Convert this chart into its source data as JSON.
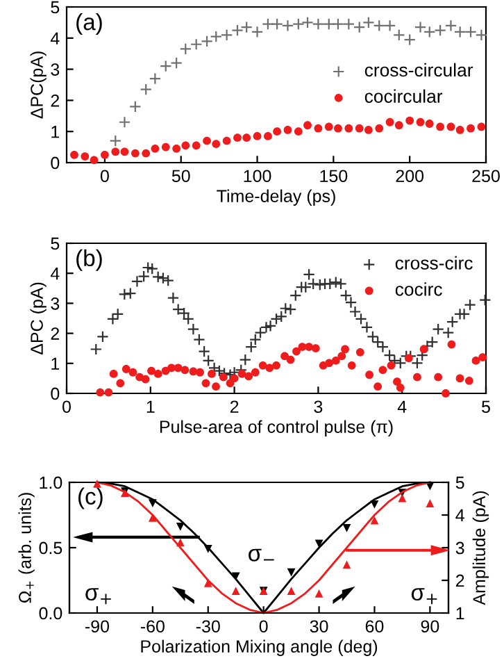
{
  "chart_data": [
    {
      "type": "scatter",
      "xlabel": "Time-delay (ps)",
      "ylabel": "ΔPC(pA)",
      "xlim": [
        -25,
        250
      ],
      "xticks": [
        0,
        50,
        100,
        150,
        200,
        250
      ],
      "ylim": [
        0,
        5
      ],
      "yticks": [
        0,
        1,
        2,
        3,
        4,
        5
      ],
      "legend": "right",
      "grid": false,
      "annotations": [
        "(a)"
      ],
      "series": [
        {
          "name": "cross-circular",
          "color": "#707070",
          "marker": "cross",
          "x": [
            7,
            13,
            20,
            27,
            33,
            40,
            47,
            53,
            60,
            67,
            73,
            80,
            87,
            93,
            100,
            107,
            113,
            120,
            127,
            133,
            140,
            147,
            153,
            160,
            167,
            173,
            180,
            187,
            193,
            200,
            207,
            213,
            220,
            227,
            233,
            240,
            247
          ],
          "values": [
            0.7,
            1.3,
            1.8,
            2.35,
            2.7,
            3.1,
            3.2,
            3.65,
            3.8,
            3.9,
            4.05,
            4.1,
            4.25,
            4.35,
            4.2,
            4.45,
            4.45,
            4.4,
            4.45,
            4.5,
            4.45,
            4.45,
            4.45,
            4.45,
            4.35,
            4.5,
            4.4,
            4.4,
            4.1,
            3.95,
            4.35,
            4.2,
            4.25,
            4.4,
            4.2,
            4.2,
            4.1
          ]
        },
        {
          "name": "cocircular",
          "color": "#ee1c1c",
          "marker": "circle",
          "x": [
            -20,
            -13,
            -7,
            0,
            7,
            13,
            20,
            27,
            33,
            40,
            47,
            53,
            60,
            67,
            73,
            80,
            87,
            93,
            100,
            107,
            113,
            120,
            127,
            133,
            140,
            147,
            153,
            160,
            167,
            173,
            180,
            187,
            193,
            200,
            207,
            213,
            220,
            227,
            233,
            240,
            247
          ],
          "values": [
            0.25,
            0.2,
            0.08,
            0.25,
            0.35,
            0.35,
            0.3,
            0.3,
            0.45,
            0.5,
            0.45,
            0.55,
            0.55,
            0.7,
            0.6,
            0.7,
            0.8,
            0.8,
            0.85,
            0.85,
            1.0,
            1.05,
            1.0,
            1.2,
            1.1,
            1.15,
            1.1,
            1.1,
            1.1,
            1.05,
            1.1,
            1.3,
            1.2,
            1.35,
            1.3,
            1.25,
            1.15,
            1.15,
            1.05,
            1.1,
            1.15
          ]
        }
      ]
    },
    {
      "type": "scatter",
      "xlabel": "Pulse-area of control pulse (π)",
      "ylabel": "ΔPC (pA)",
      "xlim": [
        0,
        5
      ],
      "xticks": [
        0,
        1,
        2,
        3,
        4,
        5
      ],
      "ylim": [
        0,
        5
      ],
      "yticks": [
        0,
        1,
        2,
        3,
        4,
        5
      ],
      "legend": "top right",
      "grid": false,
      "annotations": [
        "(b)"
      ],
      "series": [
        {
          "name": "cross-circ",
          "color": "#303030",
          "marker": "cross",
          "x": [
            0.35,
            0.43,
            0.55,
            0.61,
            0.69,
            0.76,
            0.84,
            0.92,
            0.97,
            1.02,
            1.09,
            1.15,
            1.21,
            1.27,
            1.33,
            1.4,
            1.45,
            1.51,
            1.58,
            1.64,
            1.69,
            1.76,
            1.82,
            1.88,
            1.95,
            2.0,
            2.08,
            2.13,
            2.2,
            2.25,
            2.31,
            2.38,
            2.43,
            2.5,
            2.56,
            2.61,
            2.67,
            2.73,
            2.8,
            2.85,
            2.89,
            2.94,
            3.02,
            3.08,
            3.14,
            3.21,
            3.27,
            3.33,
            3.39,
            3.44,
            3.51,
            3.58,
            3.65,
            3.71,
            3.77,
            3.85,
            3.91,
            3.98,
            4.05,
            4.1,
            4.18,
            4.24,
            4.3,
            4.36,
            4.43,
            4.55,
            4.6,
            4.69,
            4.74,
            4.81,
            4.99
          ],
          "values": [
            1.47,
            1.89,
            2.48,
            2.64,
            3.3,
            3.33,
            3.73,
            3.9,
            4.19,
            4.15,
            3.88,
            3.84,
            3.76,
            3.18,
            2.8,
            2.67,
            2.48,
            2.14,
            1.79,
            1.4,
            1.09,
            0.85,
            0.75,
            0.67,
            0.62,
            0.7,
            0.78,
            1.12,
            1.55,
            1.79,
            2.02,
            2.2,
            2.25,
            2.48,
            2.56,
            2.83,
            2.8,
            3.26,
            3.54,
            3.54,
            3.96,
            3.65,
            3.62,
            3.65,
            3.65,
            3.7,
            3.65,
            3.26,
            3.03,
            2.72,
            2.48,
            2.2,
            1.89,
            1.71,
            1.55,
            1.27,
            1.09,
            1.01,
            1.24,
            1.24,
            1.01,
            1.27,
            1.58,
            1.71,
            2.14,
            2.02,
            2.38,
            2.64,
            2.64,
            2.95,
            3.11
          ]
        },
        {
          "name": "cocirc",
          "color": "#ee1c1c",
          "marker": "circle",
          "x": [
            0.4,
            0.5,
            0.56,
            0.64,
            0.71,
            0.79,
            0.87,
            0.94,
            1.01,
            1.09,
            1.18,
            1.25,
            1.33,
            1.41,
            1.51,
            1.59,
            1.66,
            1.73,
            1.78,
            1.87,
            1.95,
            2.0,
            2.09,
            2.17,
            2.25,
            2.34,
            2.42,
            2.5,
            2.6,
            2.67,
            2.74,
            2.81,
            2.89,
            2.97,
            3.06,
            3.13,
            3.21,
            3.28,
            3.32,
            3.4,
            3.5,
            3.61,
            3.71,
            3.77,
            3.87,
            3.94,
            3.98,
            4.08,
            4.18,
            4.26,
            4.43,
            4.52,
            4.59,
            4.69,
            4.8,
            4.88,
            4.96
          ],
          "values": [
            0.03,
            0.03,
            0.65,
            0.34,
            0.81,
            0.7,
            0.54,
            0.47,
            0.75,
            0.65,
            0.75,
            0.85,
            0.85,
            0.78,
            0.73,
            0.7,
            0.34,
            0.65,
            0.23,
            0.54,
            0.34,
            0.5,
            0.65,
            0.57,
            0.7,
            0.93,
            0.85,
            0.93,
            1.24,
            1.12,
            1.4,
            1.55,
            1.55,
            1.5,
            0.93,
            1.01,
            1.09,
            1.24,
            1.47,
            0.93,
            1.37,
            0.62,
            0.23,
            0.78,
            0.93,
            0.39,
            0.19,
            1.17,
            0.54,
            1.47,
            0.54,
            0.0,
            1.63,
            0.5,
            0.42,
            1.09,
            1.2
          ]
        }
      ]
    },
    {
      "type": "scatter",
      "xlabel": "Polarization Mixing angle (deg)",
      "ylabel": "Ω$_{+}$ (arb. units)",
      "y2label": "Amplitude (pA)",
      "xlim": [
        -105,
        100
      ],
      "xticks": [
        -90,
        -60,
        -30,
        0,
        30,
        60,
        90
      ],
      "ylim": [
        0,
        1
      ],
      "yticks": [
        {
          "value": 0,
          "label": "0.0"
        },
        0.5,
        {
          "value": 1,
          "label": "1.0"
        }
      ],
      "y2lim": [
        1,
        5
      ],
      "y2ticks": [
        1,
        2,
        3,
        4,
        5
      ],
      "legend": false,
      "grid": false,
      "annotations": [
        "(c)",
        "σ$_{−}$",
        "σ$_{+}$",
        "σ$_{+}$"
      ],
      "series": [
        {
          "type": "line",
          "color": "#000000",
          "marker": "none",
          "x": [
            -90,
            -82.5,
            -75,
            -67.5,
            -60,
            -52.5,
            -45,
            -37.5,
            -30,
            -22.5,
            -15,
            -7.5,
            0,
            7.5,
            15,
            22.5,
            30,
            37.5,
            45,
            52.5,
            60,
            67.5,
            75,
            82.5,
            90
          ],
          "values": [
            1,
            0.99,
            0.97,
            0.92,
            0.87,
            0.79,
            0.71,
            0.61,
            0.5,
            0.38,
            0.26,
            0.13,
            0,
            0.13,
            0.26,
            0.38,
            0.5,
            0.61,
            0.71,
            0.79,
            0.87,
            0.92,
            0.97,
            0.99,
            1
          ]
        },
        {
          "type": "line",
          "axis": "y2",
          "color": "#ee1c1c",
          "marker": "none",
          "x": [
            -90,
            -82.5,
            -75,
            -67.5,
            -60,
            -52.5,
            -45,
            -37.5,
            -30,
            -22.5,
            -15,
            -7.5,
            0,
            7.5,
            15,
            22.5,
            30,
            37.5,
            45,
            52.5,
            60,
            67.5,
            75,
            82.5,
            90
          ],
          "values": [
            5,
            4.9,
            4.7,
            4.4,
            4,
            3.5,
            3,
            2.5,
            2,
            1.6,
            1.3,
            1.1,
            1,
            1.1,
            1.3,
            1.6,
            2,
            2.5,
            3,
            3.5,
            4,
            4.4,
            4.7,
            4.9,
            5
          ]
        },
        {
          "color": "#000000",
          "marker": "triangle_down",
          "x": [
            -75,
            -60,
            -45,
            -30,
            -15,
            0,
            15,
            30,
            45,
            60,
            75,
            90
          ],
          "values": [
            0.93,
            0.84,
            0.66,
            0.49,
            0.28,
            0.17,
            0.31,
            0.53,
            0.65,
            0.83,
            0.92,
            0.97
          ]
        },
        {
          "axis": "y2",
          "color": "#ee1c1c",
          "marker": "triangle",
          "x": [
            -90,
            -75,
            -60,
            -45,
            -30,
            -15,
            0,
            15,
            30,
            45,
            60,
            75,
            90
          ],
          "values": [
            4.96,
            4.68,
            3.92,
            3.16,
            1.92,
            1.68,
            1.68,
            1.68,
            1.6,
            2.48,
            3.84,
            4.52,
            4.36
          ]
        }
      ]
    }
  ]
}
